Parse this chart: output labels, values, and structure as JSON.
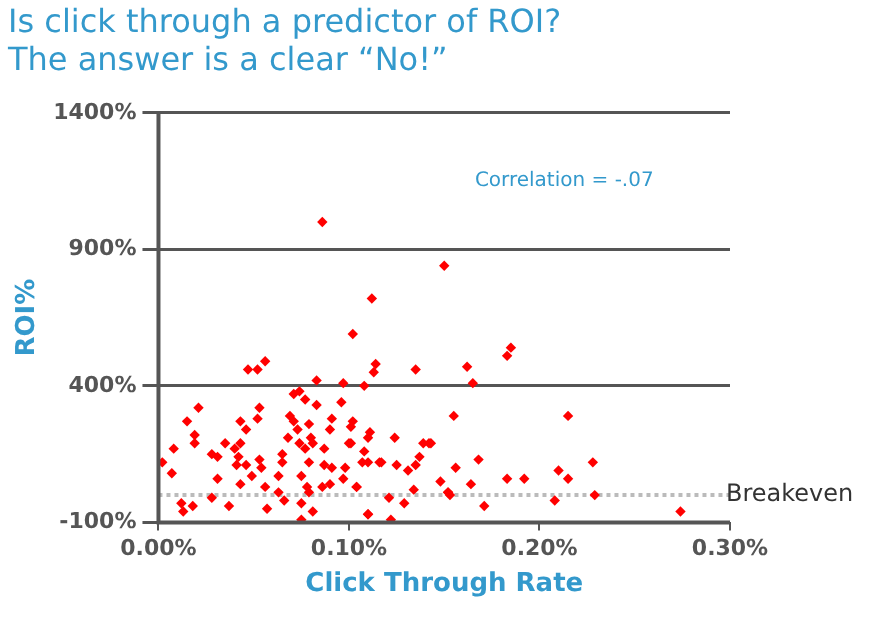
{
  "chart_data": {
    "type": "scatter",
    "title": "Is click through a predictor of ROI?",
    "subtitle": "The answer is a clear “No!”",
    "xlabel": "Click Through Rate",
    "ylabel": "ROI%",
    "annotations": [
      "Correlation = -.07"
    ],
    "xlim": [
      0,
      0.3
    ],
    "ylim": [
      -100,
      1400
    ],
    "xticks": [
      {
        "value": 0,
        "label": "0.00%"
      },
      {
        "value": 0.1,
        "label": "0.10%"
      },
      {
        "value": 0.2,
        "label": "0.20%"
      },
      {
        "value": 0.3,
        "label": "0.30%"
      }
    ],
    "yticks": [
      {
        "value": -100,
        "label": "-100%"
      },
      {
        "value": 400,
        "label": "400%"
      },
      {
        "value": 900,
        "label": "900%"
      },
      {
        "value": 1400,
        "label": "1400%"
      }
    ],
    "grid": "y",
    "marker": "diamond",
    "legend": false,
    "ref_lines": [
      {
        "axis": "y",
        "value": 0,
        "label": "Breakeven",
        "color": "#bbbbbb",
        "line_style": "dotted"
      }
    ],
    "series": [
      {
        "color": "#ff0000",
        "x": [
          0.086,
          0.112,
          0.102,
          0.114,
          0.113,
          0.108,
          0.047,
          0.052,
          0.056,
          0.083,
          0.097,
          0.021,
          0.015,
          0.019,
          0.019,
          0.008,
          0.002,
          0.007,
          0.012,
          0.013,
          0.018,
          0.028,
          0.037,
          0.028,
          0.031,
          0.035,
          0.031,
          0.04,
          0.043,
          0.046,
          0.043,
          0.042,
          0.041,
          0.043,
          0.046,
          0.049,
          0.053,
          0.054,
          0.053,
          0.052,
          0.056,
          0.057,
          0.065,
          0.065,
          0.063,
          0.063,
          0.066,
          0.068,
          0.069,
          0.071,
          0.074,
          0.077,
          0.071,
          0.073,
          0.074,
          0.079,
          0.08,
          0.077,
          0.079,
          0.075,
          0.078,
          0.079,
          0.075,
          0.075,
          0.081,
          0.083,
          0.081,
          0.087,
          0.09,
          0.091,
          0.087,
          0.091,
          0.09,
          0.086,
          0.096,
          0.098,
          0.097,
          0.101,
          0.102,
          0.1,
          0.101,
          0.104,
          0.11,
          0.108,
          0.11,
          0.116,
          0.111,
          0.15,
          0.135,
          0.162,
          0.165,
          0.155,
          0.124,
          0.142,
          0.137,
          0.156,
          0.168,
          0.131,
          0.134,
          0.148,
          0.152,
          0.164,
          0.171,
          0.129,
          0.122,
          0.11,
          0.121,
          0.125,
          0.117,
          0.104,
          0.11,
          0.107,
          0.183,
          0.185,
          0.215,
          0.139,
          0.143,
          0.183,
          0.192,
          0.21,
          0.215,
          0.228,
          0.208,
          0.229,
          0.274,
          0.135,
          0.152,
          0.153
        ],
        "values": [
          1000,
          720,
          590,
          480,
          450,
          400,
          460,
          460,
          490,
          420,
          410,
          320,
          270,
          220,
          190,
          170,
          120,
          80,
          -30,
          -60,
          -40,
          -10,
          -40,
          150,
          140,
          190,
          60,
          170,
          270,
          240,
          190,
          140,
          110,
          40,
          110,
          70,
          130,
          100,
          320,
          280,
          30,
          -50,
          150,
          120,
          70,
          10,
          -20,
          210,
          290,
          370,
          380,
          350,
          270,
          240,
          190,
          260,
          210,
          170,
          120,
          70,
          30,
          10,
          -90,
          -30,
          -60,
          330,
          190,
          170,
          240,
          280,
          110,
          100,
          40,
          30,
          340,
          100,
          60,
          250,
          270,
          190,
          190,
          30,
          -70,
          160,
          120,
          120,
          230,
          840,
          460,
          470,
          410,
          290,
          210,
          190,
          140,
          100,
          130,
          90,
          20,
          50,
          10,
          40,
          -40,
          -30,
          -90,
          -70,
          -10,
          110,
          120,
          30,
          210,
          120,
          510,
          540,
          290,
          190,
          190,
          60,
          60,
          90,
          60,
          120,
          -20,
          0,
          -60,
          110,
          10,
          0
        ]
      }
    ]
  }
}
